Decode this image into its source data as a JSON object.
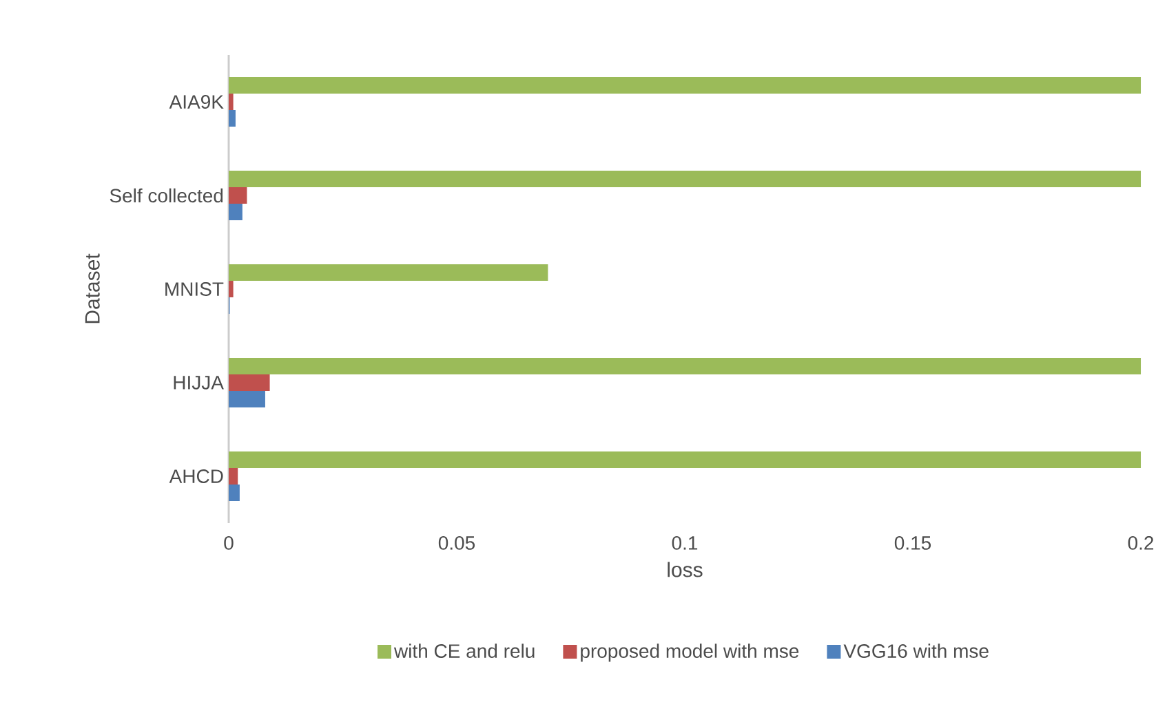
{
  "chart_data": {
    "type": "bar",
    "orientation": "horizontal",
    "xlabel": "loss",
    "ylabel": "Dataset",
    "categories": [
      "AIA9K",
      "Self collected",
      "MNIST",
      "HIJJA",
      "AHCD"
    ],
    "series": [
      {
        "name": "with CE and relu",
        "color": "#9bbb59",
        "values": [
          0.2,
          0.2,
          0.07,
          0.2,
          0.2
        ]
      },
      {
        "name": "proposed model with mse",
        "color": "#c0504d",
        "values": [
          0.001,
          0.004,
          0.001,
          0.009,
          0.002
        ]
      },
      {
        "name": "VGG16 with mse",
        "color": "#4f81bd",
        "values": [
          0.0015,
          0.003,
          0.0002,
          0.008,
          0.0024
        ]
      }
    ],
    "xlim": [
      0,
      0.2
    ],
    "xticks": [
      0,
      0.05,
      0.1,
      0.15,
      0.2
    ],
    "legend": "bottom",
    "grid": false
  }
}
